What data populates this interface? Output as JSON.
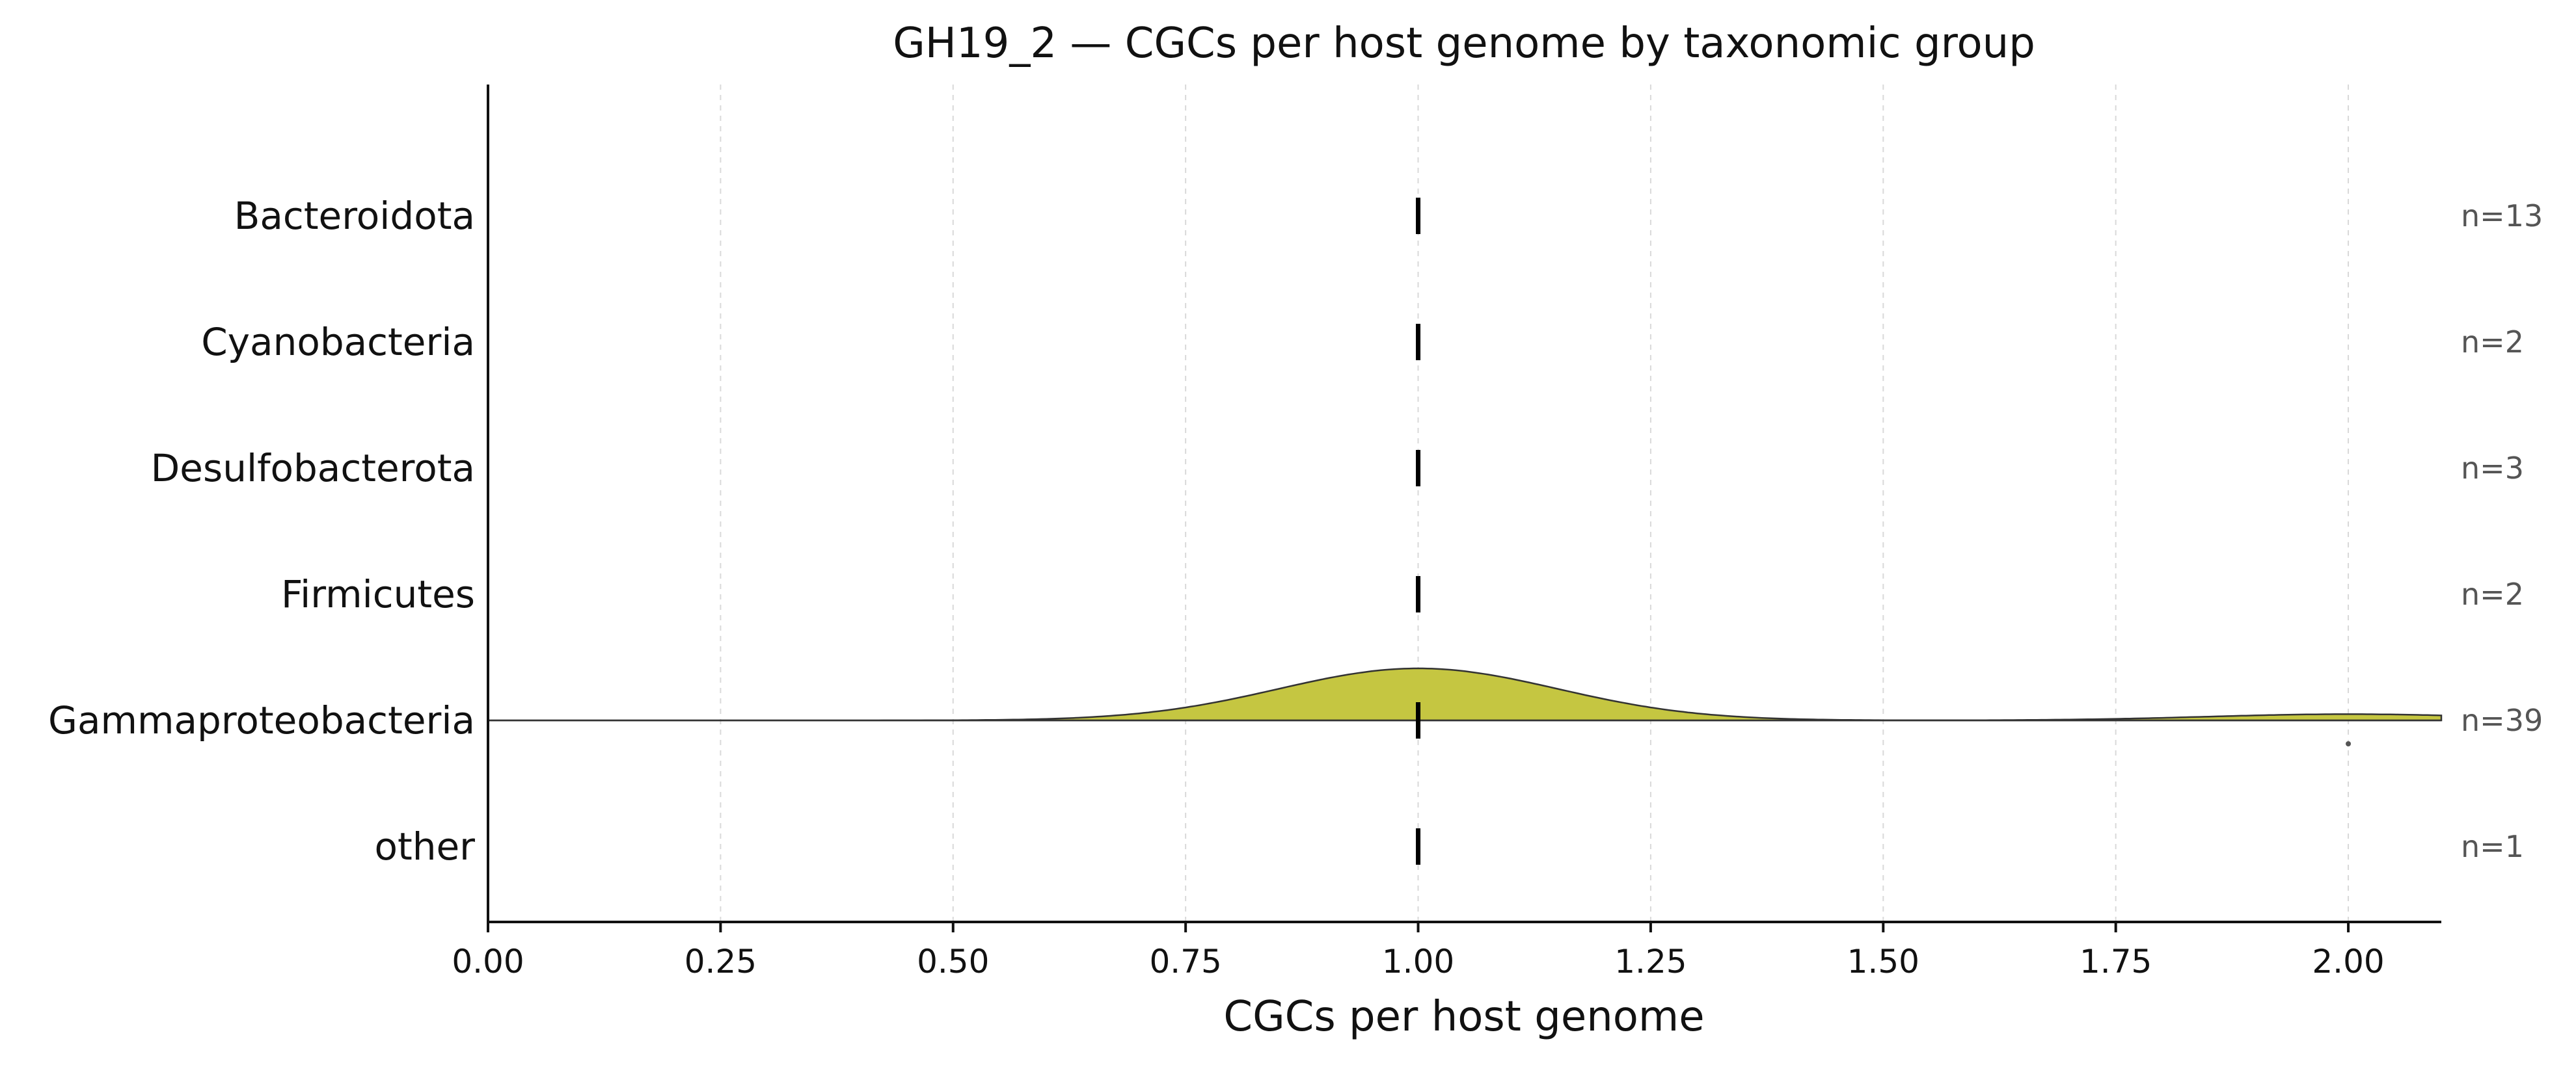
{
  "chart_data": {
    "type": "ridgeline",
    "title": "GH19_2 — CGCs per host genome by taxonomic group",
    "xlabel": "CGCs per host genome",
    "xlim": [
      0,
      2.1
    ],
    "x_ticks": [
      "0.00",
      "0.25",
      "0.50",
      "0.75",
      "1.00",
      "1.25",
      "1.50",
      "1.75",
      "2.00"
    ],
    "x_tick_values": [
      0,
      0.25,
      0.5,
      0.75,
      1.0,
      1.25,
      1.5,
      1.75,
      2.0
    ],
    "grid": "vertical dashed",
    "categories": [
      "Bacteroidota",
      "Cyanobacteria",
      "Desulfobacterota",
      "Firmicutes",
      "Gammaproteobacteria",
      "other"
    ],
    "counts": [
      "n=13",
      "n=2",
      "n=3",
      "n=2",
      "n=39",
      "n=1"
    ],
    "medians": [
      1.0,
      1.0,
      1.0,
      1.0,
      1.0,
      1.0
    ],
    "density": {
      "category": "Gammaproteobacteria",
      "color": "#c5c641",
      "components": [
        {
          "mean": 1.0,
          "sd": 0.15,
          "relative_height": 1.0
        },
        {
          "mean": 2.0,
          "sd": 0.15,
          "relative_height": 0.12
        }
      ]
    },
    "outliers": [
      {
        "category": "Gammaproteobacteria",
        "x": 2.0
      }
    ],
    "axis_color": "#111111",
    "median_color": "#000000"
  }
}
